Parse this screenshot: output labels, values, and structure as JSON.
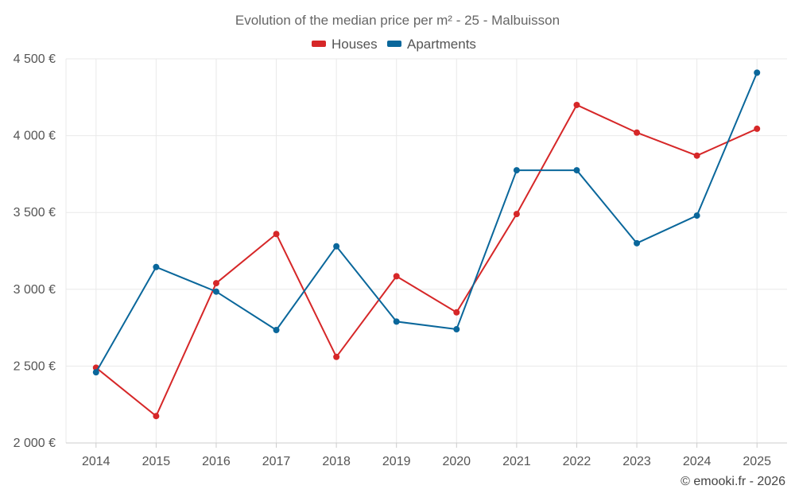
{
  "chart_data": {
    "type": "line",
    "title": "Evolution of the median price per m² - 25 - Malbuisson",
    "categories": [
      "2014",
      "2015",
      "2016",
      "2017",
      "2018",
      "2019",
      "2020",
      "2021",
      "2022",
      "2023",
      "2024",
      "2025"
    ],
    "series": [
      {
        "name": "Houses",
        "color": "#d62728",
        "values": [
          2490,
          2175,
          3040,
          3360,
          2560,
          3085,
          2850,
          3490,
          4200,
          4020,
          3870,
          4045
        ]
      },
      {
        "name": "Apartments",
        "color": "#0a679b",
        "values": [
          2460,
          3145,
          2985,
          2735,
          3280,
          2790,
          2740,
          3775,
          3775,
          3300,
          3480,
          4410
        ]
      }
    ],
    "ylim": [
      2000,
      4500
    ],
    "yticks": [
      2000,
      2500,
      3000,
      3500,
      4000,
      4500
    ],
    "ytick_labels": [
      "2 000 €",
      "2 500 €",
      "3 000 €",
      "3 500 €",
      "4 000 €",
      "4 500 €"
    ],
    "xlabel": "",
    "ylabel": "",
    "grid": true,
    "legend_position": "top-center"
  },
  "credit": "© emooki.fr - 2026"
}
